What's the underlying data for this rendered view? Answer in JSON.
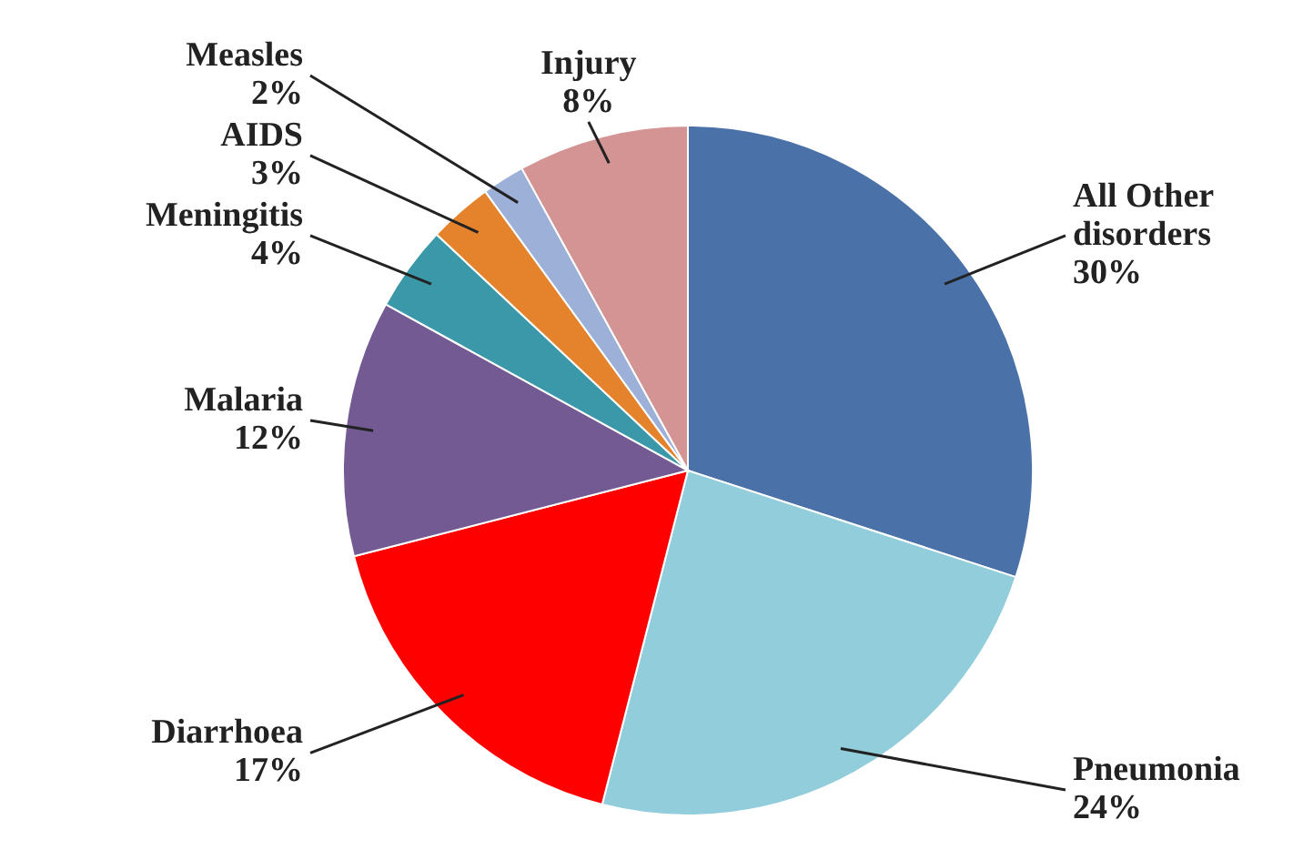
{
  "chart_data": {
    "type": "pie",
    "categories": [
      "All Other disorders",
      "Pneumonia",
      "Diarrhoea",
      "Malaria",
      "Meningitis",
      "AIDS",
      "Measles",
      "Injury"
    ],
    "values": [
      30,
      24,
      17,
      12,
      4,
      3,
      2,
      8
    ],
    "colors": [
      "#4a72a8",
      "#92cddc",
      "#ff0000",
      "#735a93",
      "#3a98a8",
      "#e5832d",
      "#9cb0d8",
      "#d49494"
    ],
    "value_labels": [
      "30%",
      "24%",
      "17%",
      "12%",
      "4%",
      "3%",
      "2%",
      "8%"
    ]
  }
}
